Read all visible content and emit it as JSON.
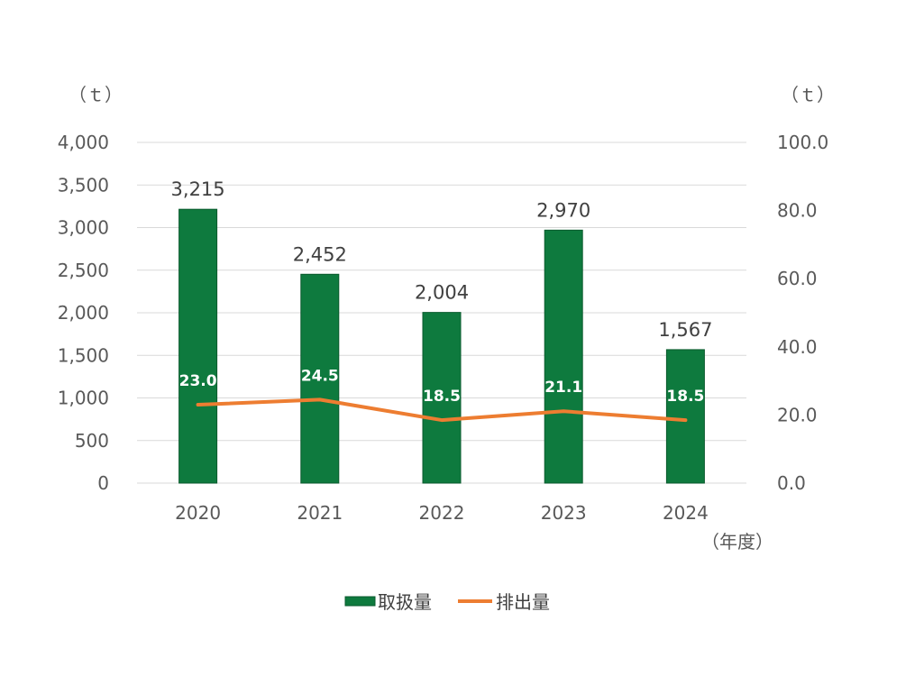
{
  "chart_data": {
    "type": "bar+line",
    "categories": [
      "2020",
      "2021",
      "2022",
      "2023",
      "2024"
    ],
    "xlabel": "（年度）",
    "y_left": {
      "unit": "（ｔ）",
      "ylim": [
        0,
        4000
      ],
      "ticks": [
        "0",
        "500",
        "1,000",
        "1,500",
        "2,000",
        "2,500",
        "3,000",
        "3,500",
        "4,000"
      ]
    },
    "y_right": {
      "unit": "（ｔ）",
      "ylim": [
        0,
        100
      ],
      "ticks": [
        "0.0",
        "20.0",
        "40.0",
        "60.0",
        "80.0",
        "100.0"
      ]
    },
    "series": [
      {
        "name": "取扱量",
        "type": "bar",
        "axis": "left",
        "values": [
          3215,
          2452,
          2004,
          2970,
          1567
        ],
        "labels": [
          "3,215",
          "2,452",
          "2,004",
          "2,970",
          "1,567"
        ],
        "color": "#0e7a3e"
      },
      {
        "name": "排出量",
        "type": "line",
        "axis": "right",
        "values": [
          23.0,
          24.5,
          18.5,
          21.1,
          18.5
        ],
        "labels": [
          "23.0",
          "24.5",
          "18.5",
          "21.1",
          "18.5"
        ],
        "color": "#ed7d31"
      }
    ],
    "grid": true,
    "legend": "bottom"
  }
}
